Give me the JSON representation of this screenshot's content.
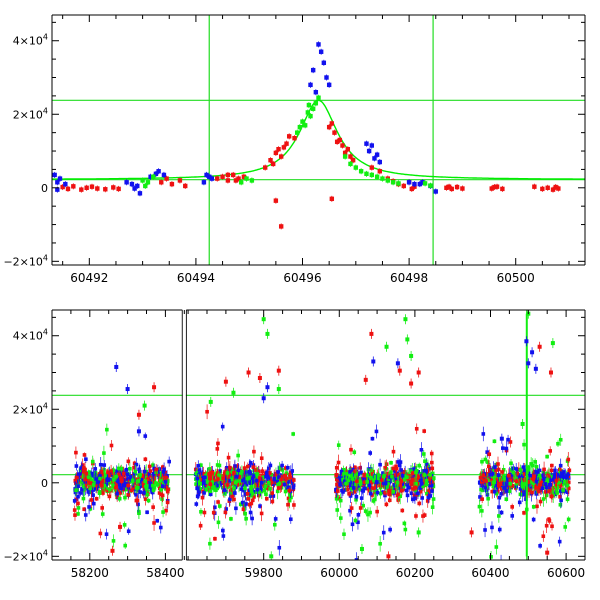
{
  "chart_data": [
    {
      "type": "scatter",
      "panel": "top",
      "title": "",
      "xlabel": "",
      "ylabel": "",
      "xlim": [
        60491.3,
        60501.3
      ],
      "ylim": [
        -21000,
        47000
      ],
      "xticks": [
        {
          "value": 60492,
          "label": "60492"
        },
        {
          "value": 60494,
          "label": "60494"
        },
        {
          "value": 60496,
          "label": "60496"
        },
        {
          "value": 60498,
          "label": "60498"
        },
        {
          "value": 60500,
          "label": "60500"
        }
      ],
      "yticks": [
        {
          "value": -20000,
          "base": "−2×10",
          "exp": "4"
        },
        {
          "value": 0,
          "base": "0",
          "exp": ""
        },
        {
          "value": 20000,
          "base": "2×10",
          "exp": "4"
        },
        {
          "value": 40000,
          "base": "4×10",
          "exp": "4"
        }
      ],
      "hlines": [
        2200,
        23800
      ],
      "vlines": [
        60494.25,
        60498.45
      ],
      "model_curve": {
        "color": "#00ee00",
        "baseline": 2200,
        "peak_x": 60496.3,
        "peak_y": 23800,
        "tE": 0.55
      },
      "series": [
        {
          "color": "#ee1111",
          "points": [
            [
              60491.5,
              200
            ],
            [
              60491.6,
              -300
            ],
            [
              60491.7,
              400
            ],
            [
              60491.85,
              -500
            ],
            [
              60491.95,
              0
            ],
            [
              60492.05,
              300
            ],
            [
              60492.15,
              -200
            ],
            [
              60492.3,
              -400
            ],
            [
              60492.45,
              100
            ],
            [
              60492.55,
              -300
            ],
            [
              60493.35,
              1500
            ],
            [
              60493.45,
              2500
            ],
            [
              60493.55,
              1000
            ],
            [
              60493.7,
              2000
            ],
            [
              60493.8,
              500
            ],
            [
              60494.4,
              2500
            ],
            [
              60494.5,
              3000
            ],
            [
              60494.6,
              2000
            ],
            [
              60494.7,
              3500
            ],
            [
              60494.8,
              2500
            ],
            [
              60494.9,
              3000
            ],
            [
              60494.6,
              3500
            ],
            [
              60494.75,
              2000
            ],
            [
              60495.3,
              5500
            ],
            [
              60495.4,
              7500
            ],
            [
              60495.5,
              9500
            ],
            [
              60495.6,
              8500
            ],
            [
              60495.45,
              6500
            ],
            [
              60495.55,
              10500
            ],
            [
              60495.7,
              12000
            ],
            [
              60495.75,
              14000
            ],
            [
              60495.65,
              11000
            ],
            [
              60495.85,
              13500
            ],
            [
              60495.6,
              -10500
            ],
            [
              60495.5,
              -3500
            ],
            [
              60496.55,
              -3000
            ],
            [
              60496.55,
              17500
            ],
            [
              60496.6,
              15000
            ],
            [
              60496.7,
              13000
            ],
            [
              60496.75,
              11500
            ],
            [
              60496.8,
              9500
            ],
            [
              60496.85,
              10500
            ],
            [
              60496.9,
              8500
            ],
            [
              60496.95,
              7500
            ],
            [
              60496.5,
              16500
            ],
            [
              60496.65,
              12500
            ],
            [
              60497.3,
              5500
            ],
            [
              60497.45,
              4500
            ],
            [
              60497.6,
              2500
            ],
            [
              60497.8,
              1000
            ],
            [
              60497.9,
              500
            ],
            [
              60498.0,
              1500
            ],
            [
              60498.1,
              300
            ],
            [
              60497.7,
              1800
            ],
            [
              60498.05,
              -300
            ],
            [
              60498.7,
              0
            ],
            [
              60498.8,
              -300
            ],
            [
              60498.9,
              200
            ],
            [
              60499.0,
              -200
            ],
            [
              60498.75,
              300
            ],
            [
              60499.55,
              -200
            ],
            [
              60499.65,
              300
            ],
            [
              60499.75,
              -300
            ],
            [
              60499.6,
              200
            ],
            [
              60500.35,
              300
            ],
            [
              60500.5,
              -300
            ],
            [
              60500.6,
              0
            ],
            [
              60500.7,
              -500
            ],
            [
              60500.8,
              -200
            ],
            [
              60500.75,
              200
            ]
          ]
        },
        {
          "color": "#1111ee",
          "points": [
            [
              60491.35,
              3500
            ],
            [
              60491.4,
              1500
            ],
            [
              60491.45,
              2500
            ],
            [
              60491.55,
              1000
            ],
            [
              60491.4,
              -500
            ],
            [
              60492.7,
              1500
            ],
            [
              60492.8,
              1000
            ],
            [
              60492.9,
              500
            ],
            [
              60492.95,
              -1500
            ],
            [
              60492.85,
              -200
            ],
            [
              60493.15,
              3000
            ],
            [
              60493.3,
              4500
            ],
            [
              60493.4,
              3500
            ],
            [
              60493.25,
              3800
            ],
            [
              60494.15,
              1500
            ],
            [
              60494.25,
              3000
            ],
            [
              60494.3,
              2500
            ],
            [
              60494.2,
              3500
            ],
            [
              60496.3,
              39000
            ],
            [
              60496.35,
              37000
            ],
            [
              60496.2,
              32000
            ],
            [
              60496.4,
              34000
            ],
            [
              60496.45,
              30000
            ],
            [
              60496.25,
              26000
            ],
            [
              60496.5,
              28000
            ],
            [
              60496.15,
              28000
            ],
            [
              60497.2,
              12000
            ],
            [
              60497.25,
              10000
            ],
            [
              60497.3,
              11500
            ],
            [
              60497.4,
              9000
            ],
            [
              60497.35,
              8000
            ],
            [
              60497.45,
              7000
            ],
            [
              60498.0,
              1500
            ],
            [
              60498.1,
              1000
            ],
            [
              60498.2,
              1000
            ],
            [
              60498.25,
              1500
            ],
            [
              60498.4,
              500
            ],
            [
              60498.5,
              -1000
            ]
          ]
        },
        {
          "color": "#11ee11",
          "points": [
            [
              60493.0,
              2000
            ],
            [
              60493.05,
              500
            ],
            [
              60493.1,
              1500
            ],
            [
              60493.2,
              3000
            ],
            [
              60494.85,
              1500
            ],
            [
              60494.95,
              2500
            ],
            [
              60495.05,
              2000
            ],
            [
              60495.9,
              15000
            ],
            [
              60496.0,
              18000
            ],
            [
              60496.05,
              17000
            ],
            [
              60496.1,
              20500
            ],
            [
              60496.15,
              19500
            ],
            [
              60496.2,
              21500
            ],
            [
              60496.25,
              23000
            ],
            [
              60496.3,
              24500
            ],
            [
              60495.95,
              16500
            ],
            [
              60496.12,
              22500
            ],
            [
              60496.8,
              8500
            ],
            [
              60496.9,
              6500
            ],
            [
              60497.0,
              5500
            ],
            [
              60497.1,
              4500
            ],
            [
              60497.2,
              3800
            ],
            [
              60497.3,
              3500
            ],
            [
              60497.4,
              3000
            ],
            [
              60497.5,
              2500
            ],
            [
              60497.6,
              2000
            ],
            [
              60497.7,
              1500
            ],
            [
              60497.8,
              1200
            ],
            [
              60498.3,
              1200
            ],
            [
              60498.4,
              600
            ]
          ]
        }
      ]
    },
    {
      "type": "scatter",
      "panel": "bottom",
      "title": "",
      "xlabel": "",
      "ylabel": "",
      "xlim": [
        58100,
        60650
      ],
      "ylim": [
        -21000,
        47000
      ],
      "axis_break": {
        "gap_start": 58450,
        "gap_end": 59590,
        "xticks_after_break": [
          59800,
          60000,
          60200,
          60400,
          60600
        ]
      },
      "xticks": [
        {
          "value": 58200,
          "label": "58200"
        },
        {
          "value": 58400,
          "label": "58400"
        },
        {
          "value": 59800,
          "label": "59800"
        },
        {
          "value": 60000,
          "label": "60000"
        },
        {
          "value": 60200,
          "label": "60200"
        },
        {
          "value": 60400,
          "label": "60400"
        },
        {
          "value": 60600,
          "label": "60600"
        }
      ],
      "yticks": [
        {
          "value": -20000,
          "base": "−2×10",
          "exp": "4"
        },
        {
          "value": 0,
          "base": "0",
          "exp": ""
        },
        {
          "value": 20000,
          "base": "2×10",
          "exp": "4"
        },
        {
          "value": 40000,
          "base": "4×10",
          "exp": "4"
        }
      ],
      "hlines": [
        2200,
        23800
      ],
      "vlines": [
        60496
      ],
      "seasons": [
        [
          58160,
          58410
        ],
        [
          59620,
          59880
        ],
        [
          59990,
          60250
        ],
        [
          60370,
          60610
        ]
      ],
      "series_colors": [
        "#ee1111",
        "#1111ee",
        "#11ee11"
      ],
      "outliers": [
        {
          "color": "#1111ee",
          "points": [
            [
              58270,
              31500
            ],
            [
              58300,
              25500
            ],
            [
              59810,
              26000
            ],
            [
              59800,
              23000
            ],
            [
              60090,
              33000
            ],
            [
              60155,
              32500
            ],
            [
              60500,
              32500
            ],
            [
              60510,
              35500
            ],
            [
              60520,
              31000
            ],
            [
              60495,
              38500
            ],
            [
              58330,
              14000
            ],
            [
              60430,
              12000
            ]
          ]
        },
        {
          "color": "#ee1111",
          "points": [
            [
              58370,
              26000
            ],
            [
              58330,
              18500
            ],
            [
              59760,
              30000
            ],
            [
              59700,
              27500
            ],
            [
              59790,
              28500
            ],
            [
              59840,
              30500
            ],
            [
              60085,
              40500
            ],
            [
              60160,
              30500
            ],
            [
              60190,
              27000
            ],
            [
              60210,
              30000
            ],
            [
              60070,
              28000
            ],
            [
              60530,
              37000
            ],
            [
              60560,
              30000
            ],
            [
              60350,
              -13500
            ],
            [
              58260,
              -18500
            ],
            [
              58280,
              -12000
            ],
            [
              60130,
              -20000
            ],
            [
              60550,
              -19000
            ]
          ]
        },
        {
          "color": "#11ee11",
          "points": [
            [
              58345,
              21000
            ],
            [
              59800,
              44500
            ],
            [
              59810,
              40500
            ],
            [
              59720,
              24500
            ],
            [
              59840,
              25500
            ],
            [
              59660,
              22000
            ],
            [
              60180,
              39000
            ],
            [
              60125,
              37000
            ],
            [
              60190,
              34500
            ],
            [
              60175,
              44500
            ],
            [
              60565,
              38000
            ],
            [
              60500,
              46000
            ],
            [
              60485,
              16000
            ],
            [
              60060,
              -18000
            ],
            [
              60210,
              -13500
            ],
            [
              59820,
              -20000
            ]
          ]
        }
      ]
    }
  ]
}
